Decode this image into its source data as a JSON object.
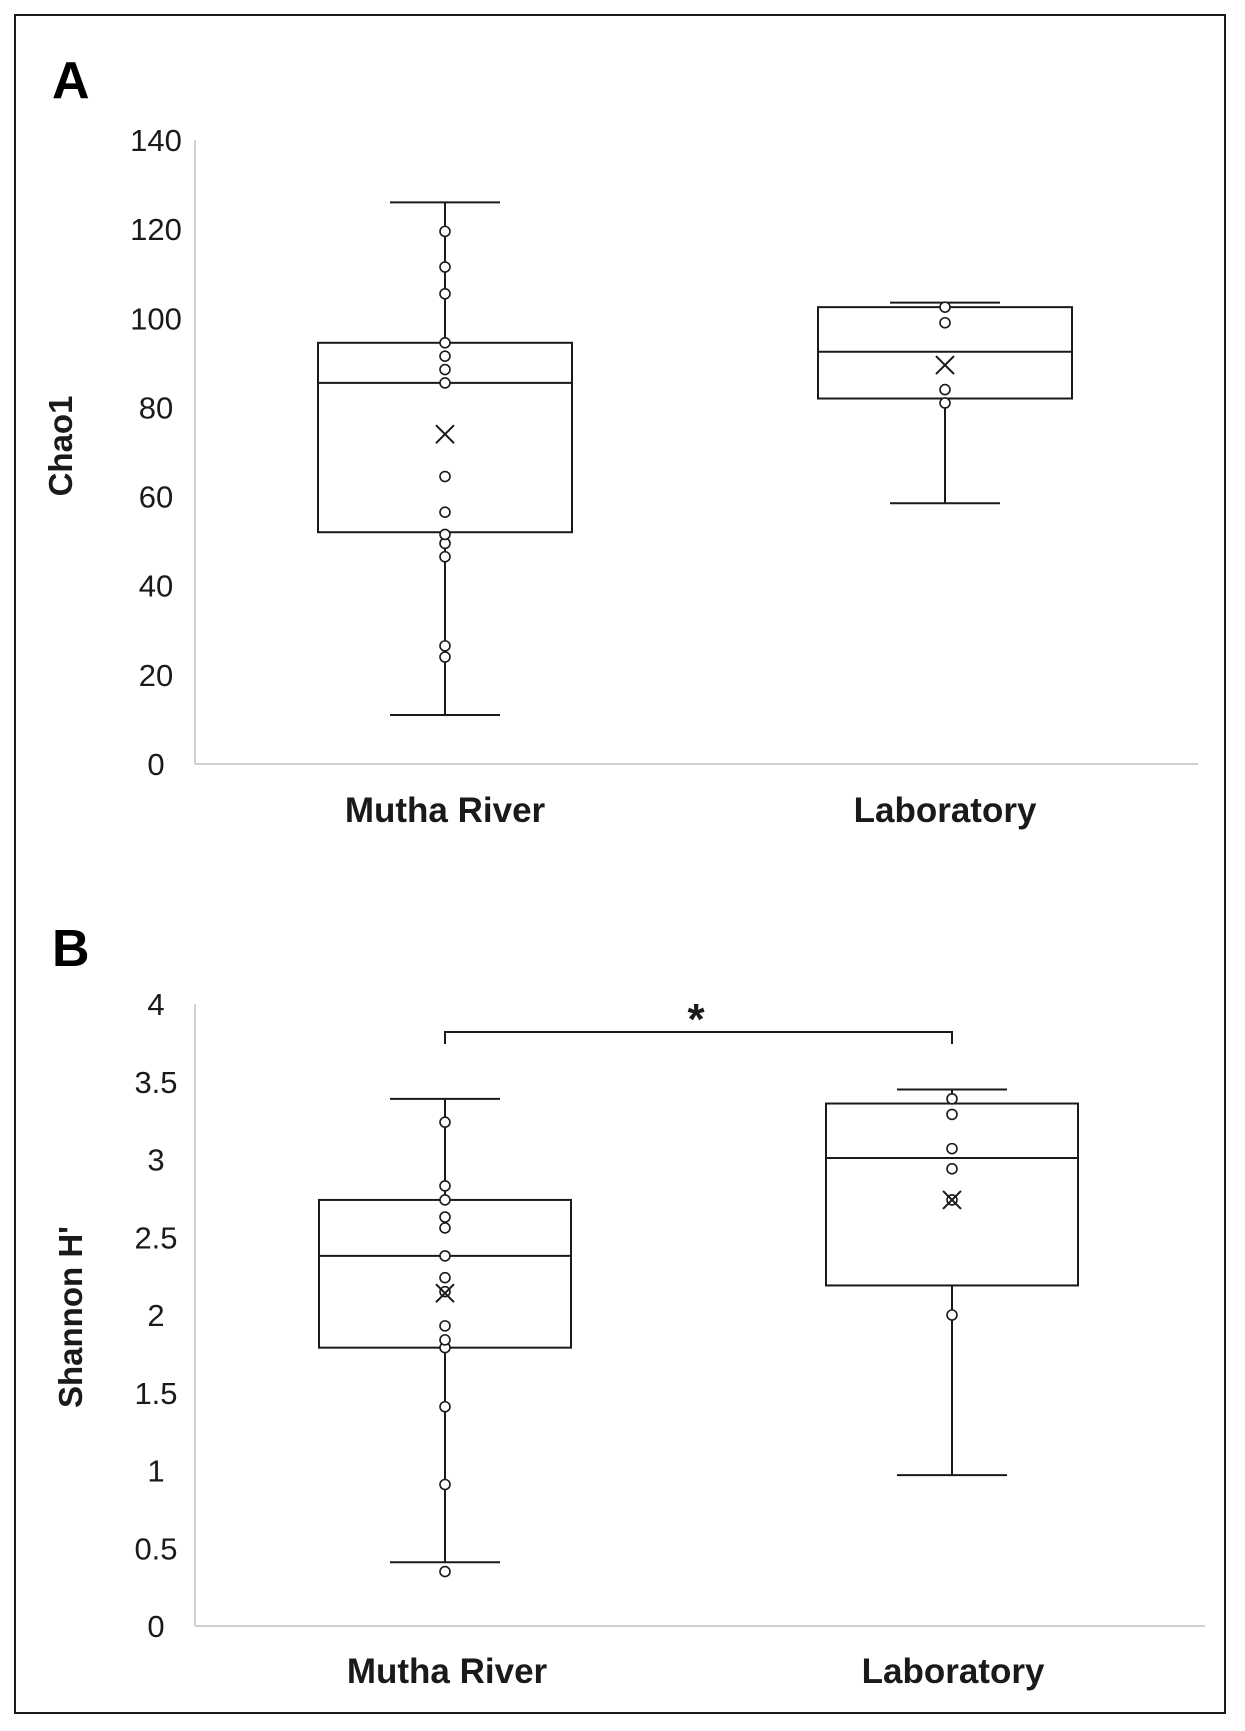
{
  "chart_data": [
    {
      "panel": "A",
      "type": "box",
      "ylabel": "Chao1",
      "ylim": [
        0,
        140
      ],
      "yticks": [
        "0",
        "20",
        "40",
        "60",
        "80",
        "100",
        "120",
        "140"
      ],
      "categories": [
        "Mutha River",
        "Laboratory"
      ],
      "groups": [
        {
          "name": "Mutha River",
          "min": 11,
          "q1": 52,
          "median": 85.5,
          "q3": 94.5,
          "max": 126,
          "mean": 74,
          "points": [
            24,
            26.5,
            46.5,
            49.5,
            51.5,
            56.5,
            64.5,
            85.5,
            88.5,
            91.5,
            94.5,
            105.5,
            111.5,
            119.5
          ]
        },
        {
          "name": "Laboratory",
          "min": 58.5,
          "q1": 82,
          "median": 92.5,
          "q3": 102.5,
          "max": 103.5,
          "mean": 89.5,
          "points": [
            81,
            84,
            99,
            102.5
          ]
        }
      ]
    },
    {
      "panel": "B",
      "type": "box",
      "ylabel": "Shannon H'",
      "ylim": [
        0,
        4
      ],
      "yticks": [
        "0",
        "0.5",
        "1",
        "1.5",
        "2",
        "2.5",
        "3",
        "3.5",
        "4"
      ],
      "categories": [
        "Mutha River",
        "Laboratory"
      ],
      "significance": {
        "label": "*",
        "between": [
          "Mutha River",
          "Laboratory"
        ],
        "level": 3.82
      },
      "groups": [
        {
          "name": "Mutha River",
          "min": 0.41,
          "q1": 1.79,
          "median": 2.38,
          "q3": 2.74,
          "max": 3.39,
          "mean": 2.14,
          "points": [
            0.35,
            0.91,
            1.41,
            1.79,
            1.84,
            1.93,
            2.15,
            2.24,
            2.38,
            2.56,
            2.63,
            2.74,
            2.83,
            3.24
          ]
        },
        {
          "name": "Laboratory",
          "min": 0.97,
          "q1": 2.19,
          "median": 3.01,
          "q3": 3.36,
          "max": 3.45,
          "mean": 2.74,
          "points": [
            2.0,
            2.74,
            2.94,
            3.07,
            3.29,
            3.39
          ]
        }
      ]
    }
  ]
}
